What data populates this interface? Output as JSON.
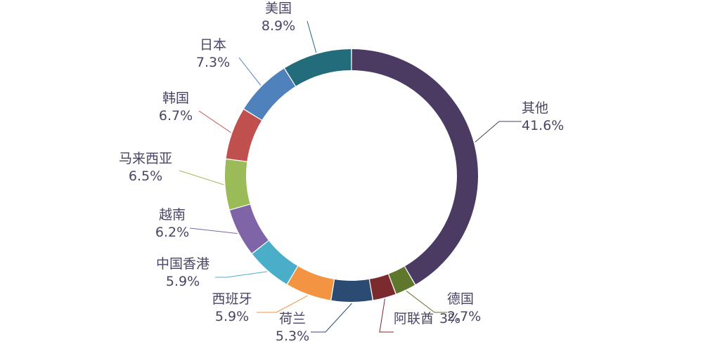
{
  "chart_data": {
    "type": "pie",
    "variant": "donut",
    "title": "",
    "start_angle_deg": 0,
    "direction": "clockwise",
    "slices": [
      {
        "name": "其他",
        "value": 41.6,
        "label": "41.6%",
        "color": "#4b3b62"
      },
      {
        "name": "德国",
        "value": 2.7,
        "label": "2.7%",
        "color": "#5e772d"
      },
      {
        "name": "阿联酋",
        "value": 3,
        "label": "3%",
        "color": "#7b2a2d"
      },
      {
        "name": "荷兰",
        "value": 5.3,
        "label": "5.3%",
        "color": "#2c4b73"
      },
      {
        "name": "西班牙",
        "value": 5.9,
        "label": "5.9%",
        "color": "#f39443"
      },
      {
        "name": "中国香港",
        "value": 5.9,
        "label": "5.9%",
        "color": "#4baec9"
      },
      {
        "name": "越南",
        "value": 6.2,
        "label": "6.2%",
        "color": "#7f65a8"
      },
      {
        "name": "马来西亚",
        "value": 6.5,
        "label": "6.5%",
        "color": "#9bbb59"
      },
      {
        "name": "韩国",
        "value": 6.7,
        "label": "6.7%",
        "color": "#c0504d"
      },
      {
        "name": "日本",
        "value": 7.3,
        "label": "7.3%",
        "color": "#4f81bd"
      },
      {
        "name": "美国",
        "value": 8.9,
        "label": "8.9%",
        "color": "#236c7c"
      }
    ]
  }
}
